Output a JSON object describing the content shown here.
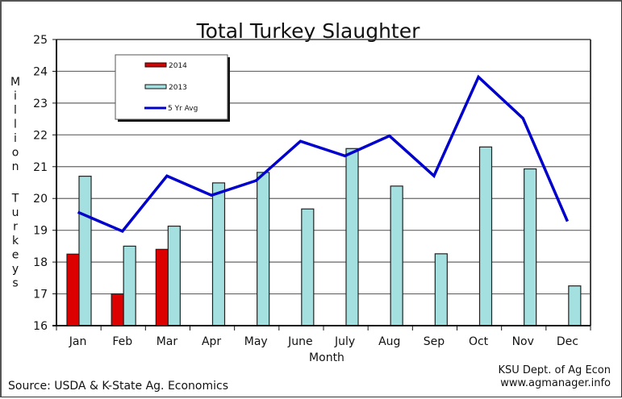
{
  "chart_data": {
    "type": "bar",
    "title": "Total Turkey Slaughter",
    "xlabel": "Month",
    "ylabel": "Million Turkeys",
    "ylim": [
      16,
      25
    ],
    "yticks": [
      16,
      17,
      18,
      19,
      20,
      21,
      22,
      23,
      24,
      25
    ],
    "grid": true,
    "legend_position": "upper-left-inside",
    "categories": [
      "Jan",
      "Feb",
      "Mar",
      "Apr",
      "May",
      "June",
      "July",
      "Aug",
      "Sep",
      "Oct",
      "Nov",
      "Dec"
    ],
    "series": [
      {
        "name": "2014",
        "type": "bar",
        "color": "#dd0000",
        "values": [
          18.25,
          17.0,
          18.4,
          null,
          null,
          null,
          null,
          null,
          null,
          null,
          null,
          null
        ]
      },
      {
        "name": "2013",
        "type": "bar",
        "color": "#a4e0e0",
        "values": [
          20.7,
          18.5,
          19.13,
          20.49,
          20.82,
          19.67,
          21.57,
          20.39,
          18.26,
          21.62,
          20.93,
          17.25
        ]
      },
      {
        "name": "5 Yr Avg",
        "type": "line",
        "color": "#0000cc",
        "values": [
          19.57,
          18.97,
          20.71,
          20.1,
          20.56,
          21.8,
          21.34,
          21.97,
          20.71,
          23.82,
          22.52,
          19.28
        ]
      }
    ]
  },
  "footer": {
    "source": "Source: USDA & K-State Ag. Economics",
    "credit_line1": "KSU Dept. of Ag Econ",
    "credit_line2": "www.agmanager.info"
  },
  "colors": {
    "bar_2014": "#dd0000",
    "bar_2013": "#a4e0e0",
    "line_5yr": "#0000cc",
    "gridline": "#666666"
  }
}
